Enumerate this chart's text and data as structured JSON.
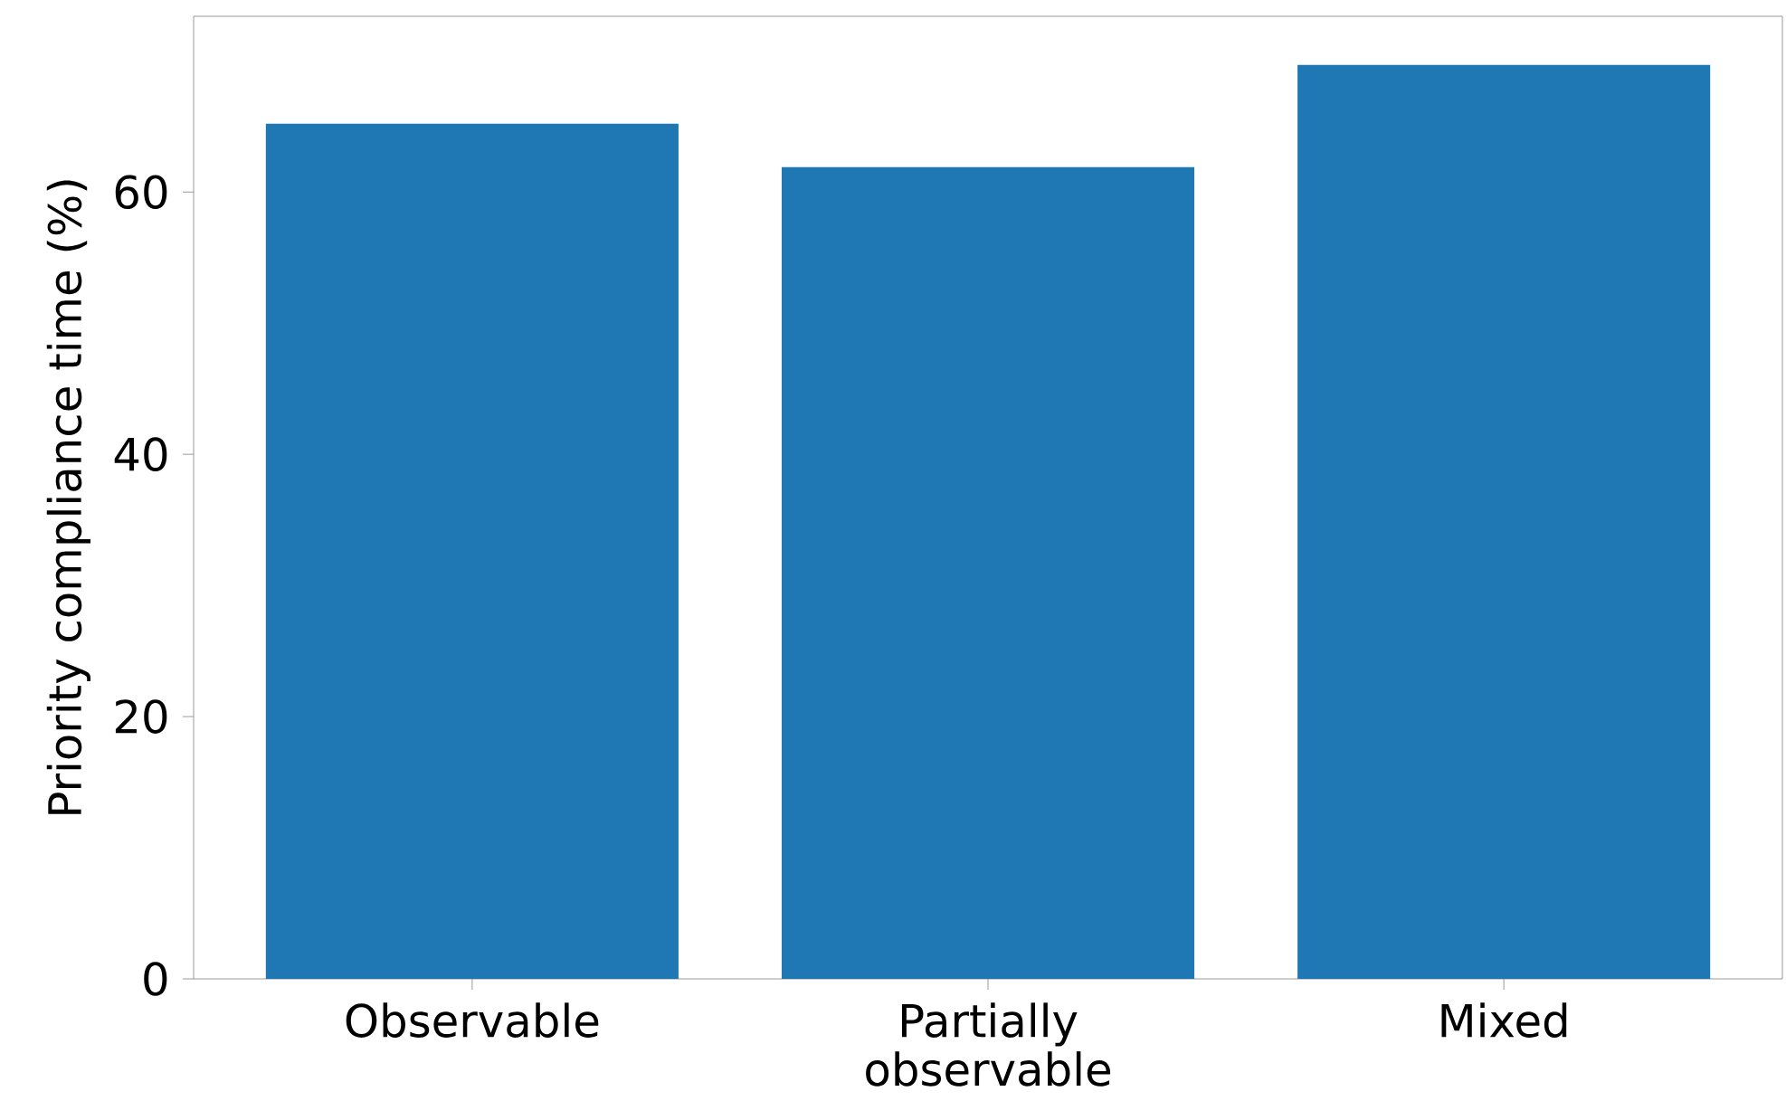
{
  "chart_data": {
    "type": "bar",
    "ylabel": "Priority compliance time (%)",
    "categories": [
      "Observable",
      "Partially observable",
      "Mixed"
    ],
    "values": [
      65.2,
      61.9,
      69.7
    ],
    "color": "#1f77b4",
    "ylim": [
      0,
      73.4
    ],
    "yticks": [
      0,
      20,
      40,
      60
    ],
    "grid": false
  }
}
